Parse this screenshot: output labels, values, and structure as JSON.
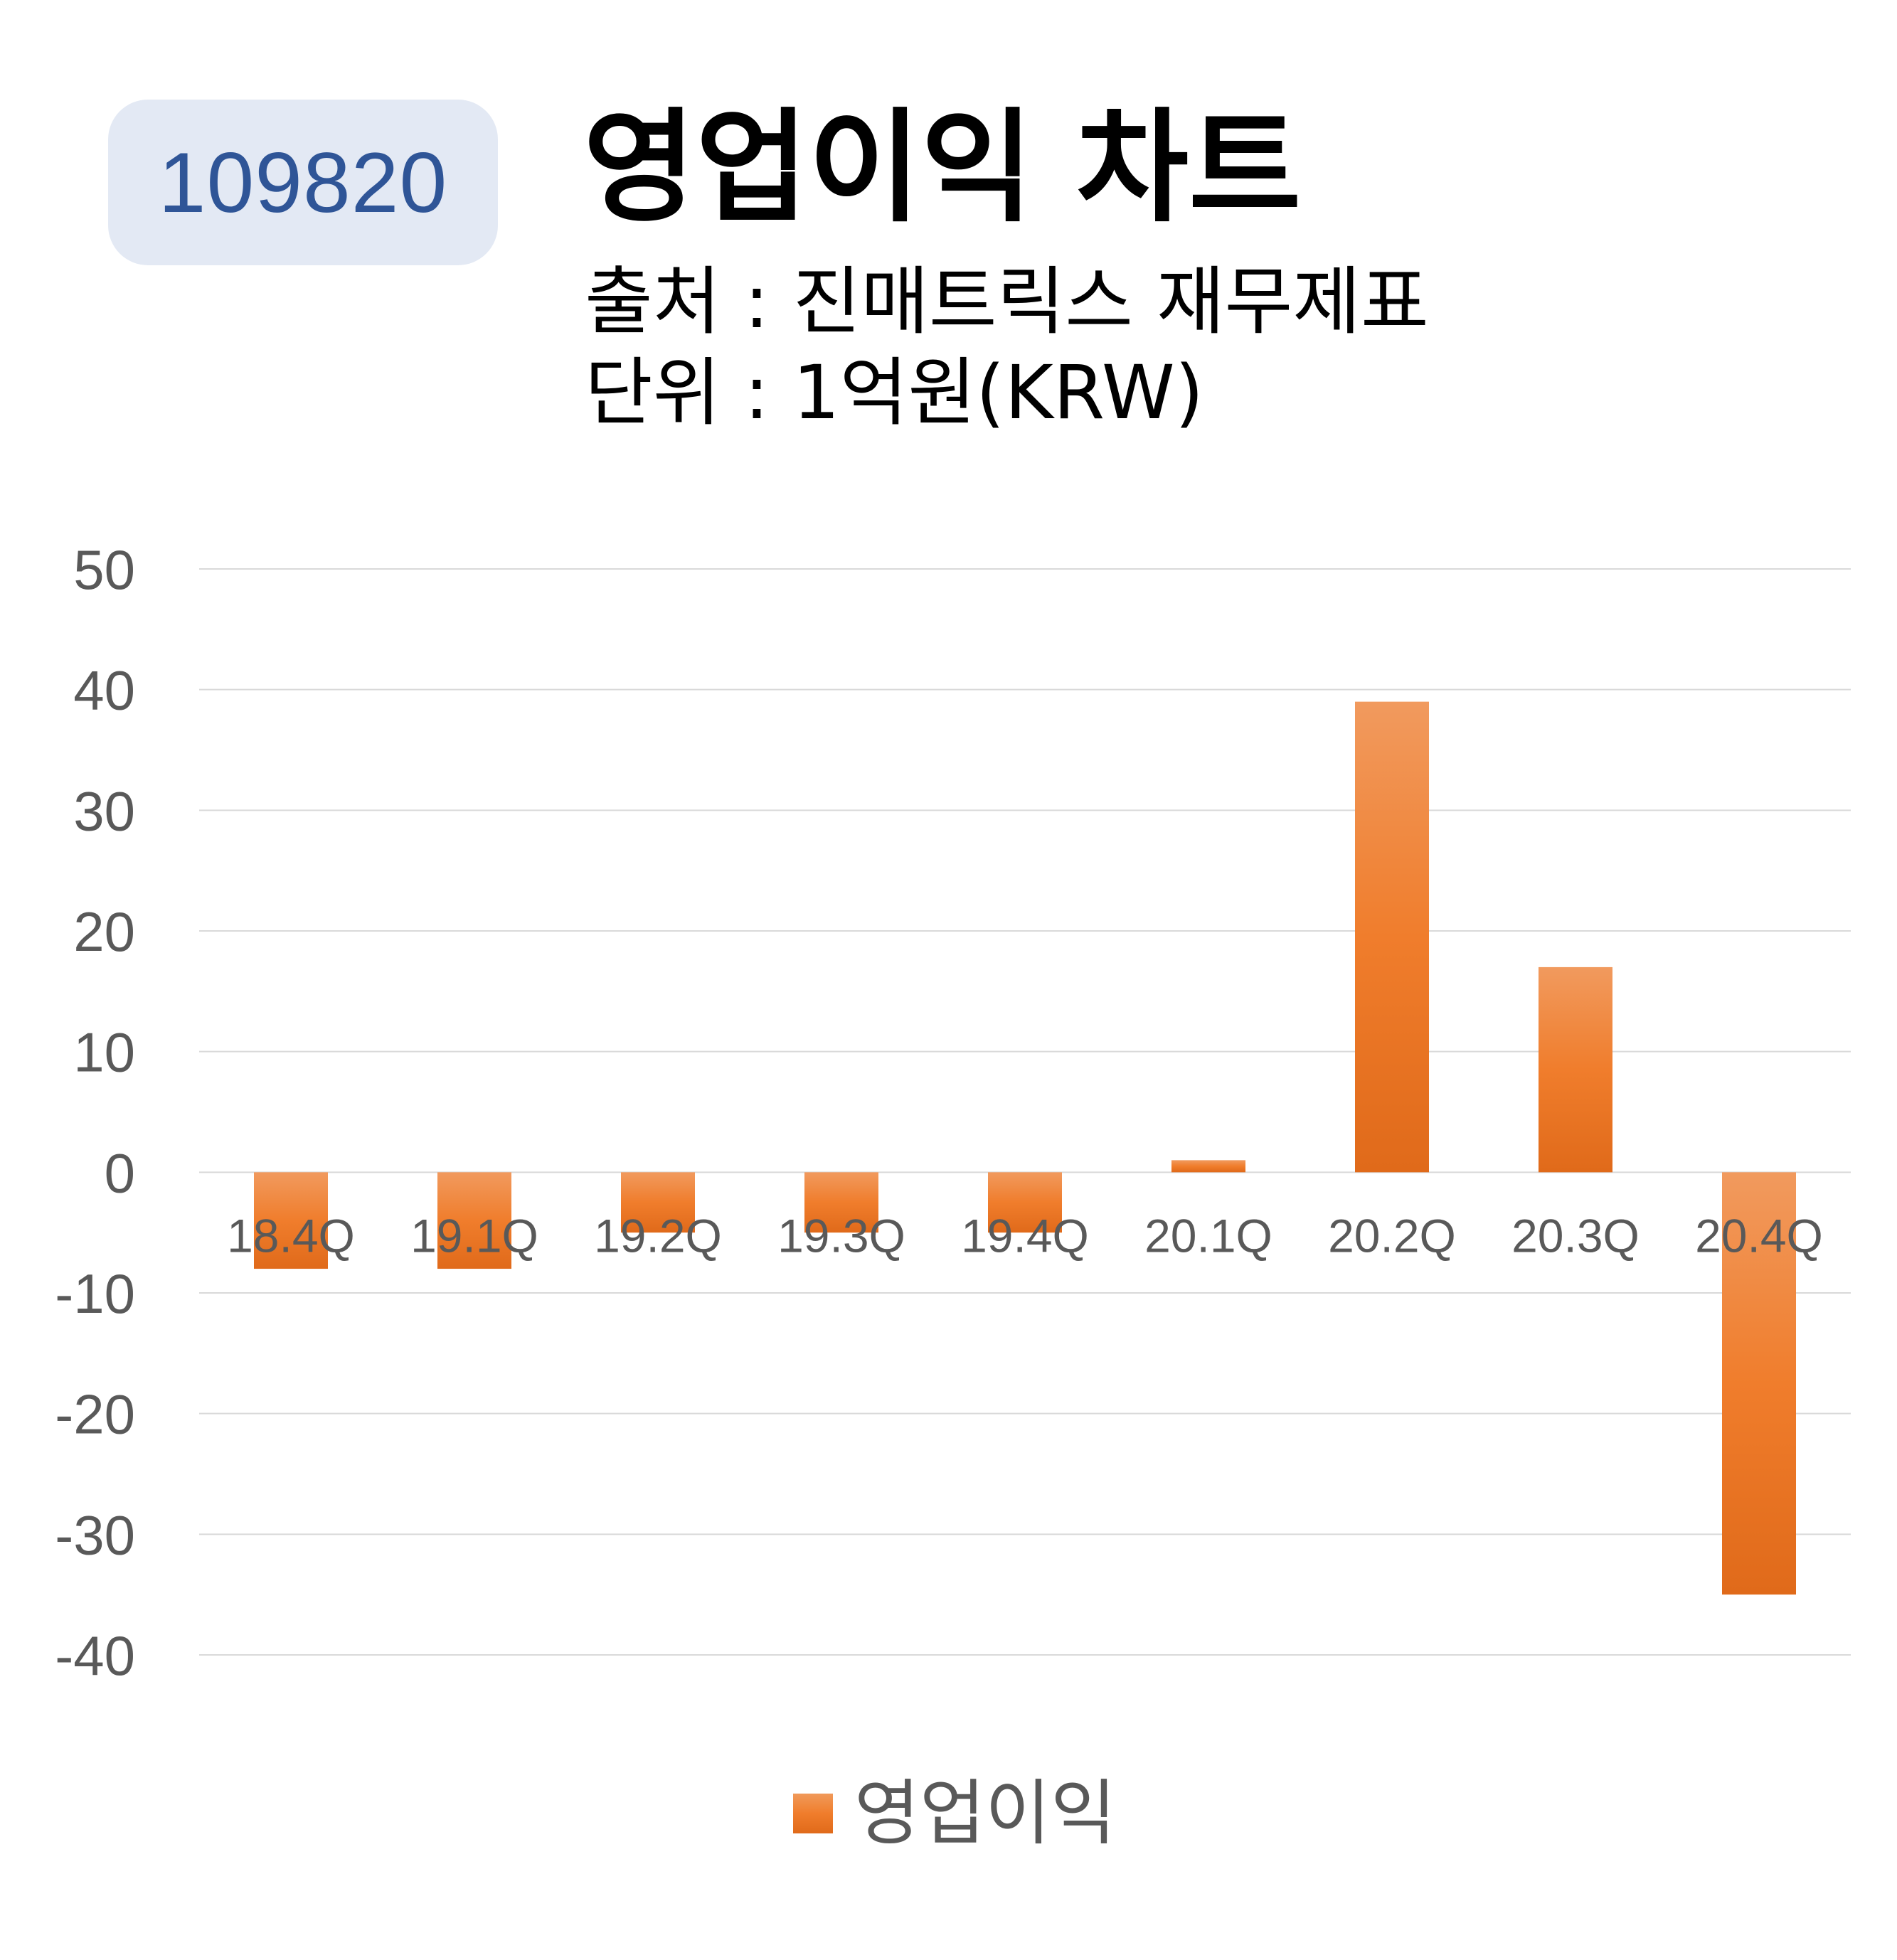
{
  "header": {
    "code": "109820",
    "title": "영업이익 차트",
    "source": "출처 : 진매트릭스 재무제표",
    "unit": "단위 : 1억원(KRW)"
  },
  "colors": {
    "bar": "#f07d2c",
    "bar_light": "#f19a5e",
    "bar_dark": "#e06a1a",
    "grid": "#d9d9d9",
    "axis_text": "#595959",
    "badge_bg": "#e3e9f4",
    "badge_text": "#2f5597"
  },
  "chart_data": {
    "type": "bar",
    "categories": [
      "18.4Q",
      "19.1Q",
      "19.2Q",
      "19.3Q",
      "19.4Q",
      "20.1Q",
      "20.2Q",
      "20.3Q",
      "20.4Q"
    ],
    "series": [
      {
        "name": "영업이익",
        "values": [
          -8,
          -8,
          -5,
          -5,
          -5,
          1,
          39,
          17,
          -35
        ]
      }
    ],
    "ylim": [
      -40,
      50
    ],
    "yticks": [
      50,
      40,
      30,
      20,
      10,
      0,
      -10,
      -20,
      -30,
      -40
    ],
    "grid": true,
    "legend": "bottom"
  }
}
